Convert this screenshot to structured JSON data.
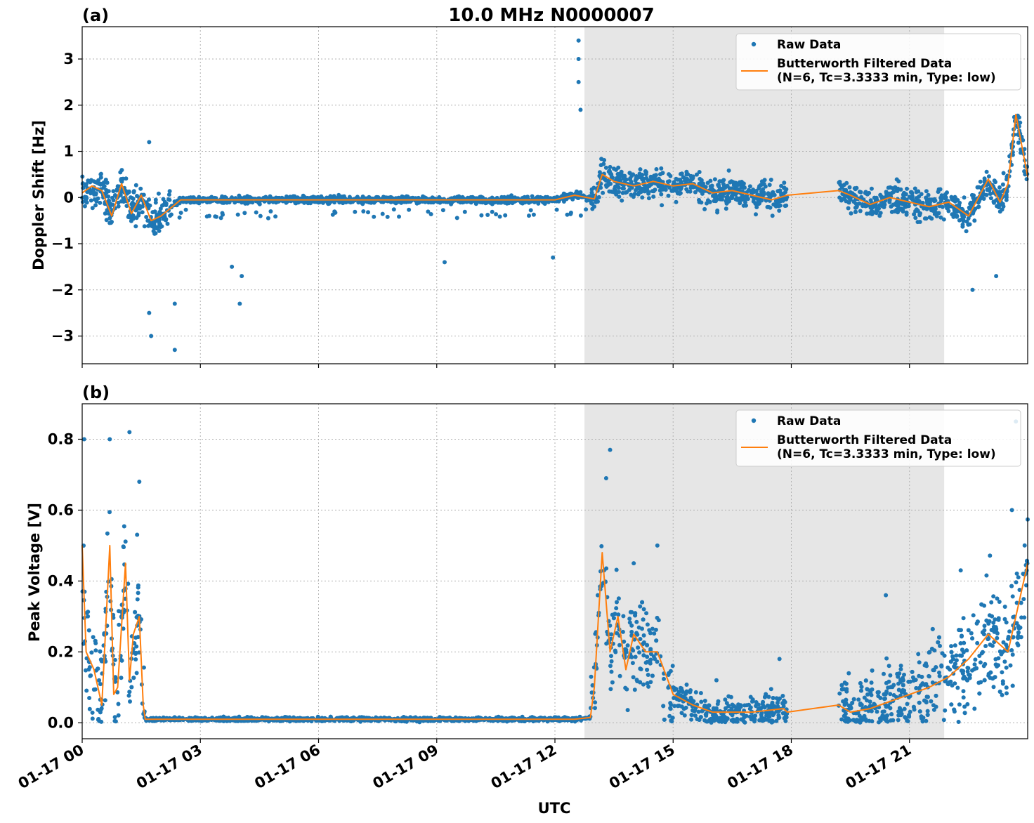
{
  "figure": {
    "title": "10.0 MHz N0000007",
    "xlabel": "UTC",
    "x_tick_labels": [
      "01-17 00",
      "01-17 03",
      "01-17 06",
      "01-17 09",
      "01-17 12",
      "01-17 15",
      "01-17 18",
      "01-17 21"
    ],
    "colors": {
      "raw": "#1f77b4",
      "filtered": "#ff7f0e",
      "shade": "#e6e6e6"
    }
  },
  "chart_data": [
    {
      "type": "scatter",
      "panel_label": "(a)",
      "ylabel": "Doppler Shift [Hz]",
      "xlim_hours": [
        0,
        24
      ],
      "ylim": [
        -3.6,
        3.7
      ],
      "y_ticks": [
        3,
        2,
        1,
        0,
        -1,
        -2,
        -3
      ],
      "y_tick_labels": [
        "3",
        "2",
        "1",
        "0",
        "−1",
        "−2",
        "−3"
      ],
      "grid": true,
      "legend_position": "top-right",
      "shaded_region_hours": [
        12.75,
        21.88
      ],
      "gap_hours": [
        17.9,
        19.2
      ],
      "series": [
        {
          "name": "Raw Data",
          "style": "points"
        },
        {
          "name": "Butterworth Filtered Data\n(N=6, Tc=3.3333 min, Type: low)",
          "style": "line",
          "x_hours": [
            0,
            0.25,
            0.5,
            0.75,
            1.0,
            1.25,
            1.5,
            1.75,
            2.0,
            2.5,
            3,
            4,
            5,
            6,
            8,
            10,
            12,
            12.5,
            13.0,
            13.2,
            13.5,
            14,
            14.5,
            15,
            15.5,
            16,
            16.5,
            17,
            17.5,
            17.9,
            19.2,
            19.5,
            20,
            20.5,
            21,
            21.5,
            22,
            22.5,
            23,
            23.3,
            23.5,
            23.7,
            24
          ],
          "y": [
            0.1,
            0.25,
            0.15,
            -0.4,
            0.3,
            -0.35,
            0.05,
            -0.5,
            -0.4,
            -0.05,
            -0.05,
            -0.05,
            -0.05,
            -0.05,
            -0.05,
            -0.05,
            -0.05,
            0.05,
            -0.03,
            0.5,
            0.35,
            0.25,
            0.35,
            0.25,
            0.3,
            0.1,
            0.15,
            0.05,
            -0.05,
            0.05,
            0.15,
            0.05,
            -0.15,
            0.0,
            -0.1,
            -0.2,
            -0.1,
            -0.4,
            0.4,
            -0.1,
            0.3,
            1.8,
            0.45
          ]
        }
      ]
    },
    {
      "type": "scatter",
      "panel_label": "(b)",
      "ylabel": "Peak Voltage [V]",
      "xlim_hours": [
        0,
        24
      ],
      "ylim": [
        -0.045,
        0.9
      ],
      "y_ticks": [
        0.8,
        0.6,
        0.4,
        0.2,
        0.0
      ],
      "y_tick_labels": [
        "0.8",
        "0.6",
        "0.4",
        "0.2",
        "0.0"
      ],
      "grid": true,
      "legend_position": "top-right",
      "shaded_region_hours": [
        12.75,
        21.88
      ],
      "gap_hours": [
        17.9,
        19.2
      ],
      "series": [
        {
          "name": "Raw Data",
          "style": "points"
        },
        {
          "name": "Butterworth Filtered Data\n(N=6, Tc=3.3333 min, Type: low)",
          "style": "line",
          "x_hours": [
            0,
            0.1,
            0.3,
            0.5,
            0.7,
            0.8,
            0.9,
            1.1,
            1.2,
            1.3,
            1.45,
            1.55,
            1.6,
            2,
            4,
            6,
            8,
            10,
            12,
            12.5,
            12.9,
            13.0,
            13.2,
            13.4,
            13.6,
            13.8,
            14,
            14.3,
            14.6,
            15,
            15.5,
            16,
            17,
            17.8,
            17.9,
            19.2,
            19.5,
            20,
            20.5,
            21,
            21.5,
            22,
            22.5,
            23,
            23.5,
            23.8,
            24
          ],
          "y": [
            0.5,
            0.2,
            0.15,
            0.05,
            0.5,
            0.08,
            0.1,
            0.45,
            0.12,
            0.25,
            0.3,
            0.05,
            0.01,
            0.01,
            0.01,
            0.01,
            0.01,
            0.01,
            0.01,
            0.01,
            0.015,
            0.1,
            0.48,
            0.2,
            0.3,
            0.15,
            0.25,
            0.2,
            0.2,
            0.08,
            0.05,
            0.03,
            0.03,
            0.04,
            0.03,
            0.05,
            0.03,
            0.04,
            0.06,
            0.08,
            0.1,
            0.13,
            0.18,
            0.25,
            0.2,
            0.35,
            0.45
          ]
        }
      ]
    }
  ]
}
